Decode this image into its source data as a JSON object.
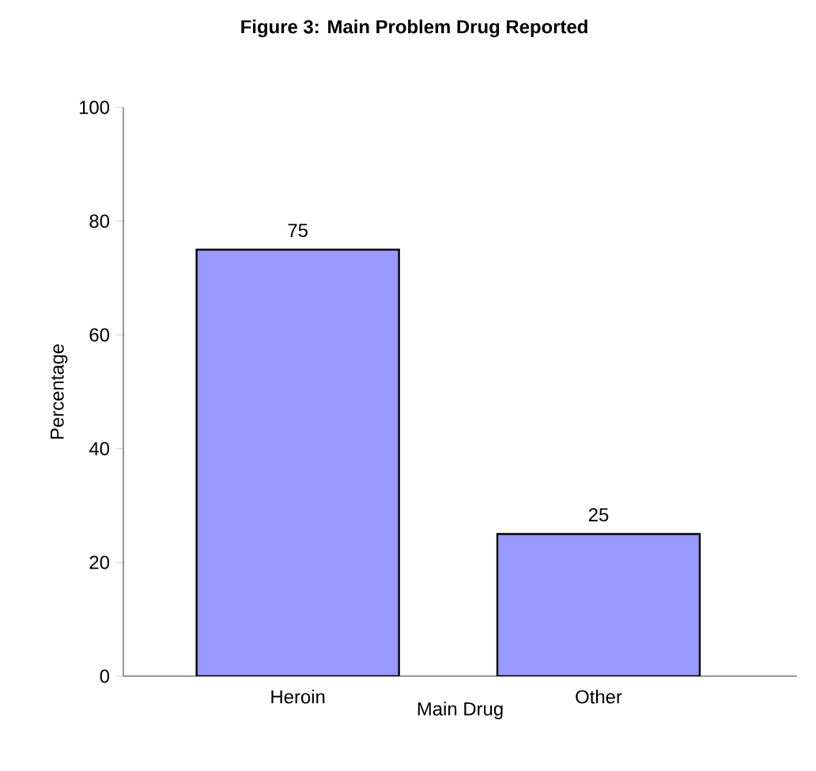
{
  "chart_data": {
    "type": "bar",
    "title": "Figure 3: Main Problem Drug Reported",
    "xlabel": "Main Drug",
    "ylabel": "Percentage",
    "categories": [
      "Heroin",
      "Other"
    ],
    "values": [
      75,
      25
    ],
    "color": "#9999ff",
    "ylim": [
      0,
      100
    ],
    "yticks": [
      0,
      20,
      40,
      60,
      80,
      100
    ],
    "data_labels": true
  }
}
